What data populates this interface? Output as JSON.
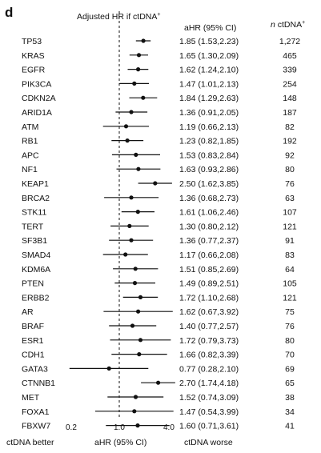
{
  "panel_label": "d",
  "header": {
    "title_main": "Adjusted HR if ctDNA",
    "title_sup": "+",
    "ahr_col": "aHR (95% CI)",
    "n_col_prefix": "n",
    "n_col_main": " ctDNA",
    "n_col_sup": "+"
  },
  "axis": {
    "ticks": [
      "0.2",
      "1.0",
      "4.0"
    ],
    "left_label": "ctDNA better",
    "center_label": "aHR (95% CI)",
    "right_label": "ctDNA worse"
  },
  "chart_data": {
    "type": "forest",
    "x_scale": "log",
    "xlim": [
      0.2,
      4.0
    ],
    "reference_line": 1.0,
    "rows": [
      {
        "gene": "TP53",
        "hr": 1.85,
        "lo": 1.53,
        "hi": 2.23,
        "ci_text": "1.85 (1.53,2.23)",
        "n": "1,272"
      },
      {
        "gene": "KRAS",
        "hr": 1.65,
        "lo": 1.3,
        "hi": 2.09,
        "ci_text": "1.65 (1.30,2.09)",
        "n": "465"
      },
      {
        "gene": "EGFR",
        "hr": 1.62,
        "lo": 1.24,
        "hi": 2.1,
        "ci_text": "1.62 (1.24,2.10)",
        "n": "339"
      },
      {
        "gene": "PIK3CA",
        "hr": 1.47,
        "lo": 1.01,
        "hi": 2.13,
        "ci_text": "1.47 (1.01,2.13)",
        "n": "254"
      },
      {
        "gene": "CDKN2A",
        "hr": 1.84,
        "lo": 1.29,
        "hi": 2.63,
        "ci_text": "1.84 (1.29,2.63)",
        "n": "148"
      },
      {
        "gene": "ARID1A",
        "hr": 1.36,
        "lo": 0.91,
        "hi": 2.05,
        "ci_text": "1.36 (0.91,2.05)",
        "n": "187"
      },
      {
        "gene": "ATM",
        "hr": 1.19,
        "lo": 0.66,
        "hi": 2.13,
        "ci_text": "1.19 (0.66,2.13)",
        "n": "82"
      },
      {
        "gene": "RB1",
        "hr": 1.23,
        "lo": 0.82,
        "hi": 1.85,
        "ci_text": "1.23 (0.82,1.85)",
        "n": "192"
      },
      {
        "gene": "APC",
        "hr": 1.53,
        "lo": 0.83,
        "hi": 2.84,
        "ci_text": "1.53 (0.83,2.84)",
        "n": "92"
      },
      {
        "gene": "NF1",
        "hr": 1.63,
        "lo": 0.93,
        "hi": 2.86,
        "ci_text": "1.63 (0.93,2.86)",
        "n": "80"
      },
      {
        "gene": "KEAP1",
        "hr": 2.5,
        "lo": 1.62,
        "hi": 3.85,
        "ci_text": "2.50 (1.62,3.85)",
        "n": "76"
      },
      {
        "gene": "BRCA2",
        "hr": 1.36,
        "lo": 0.68,
        "hi": 2.73,
        "ci_text": "1.36 (0.68,2.73)",
        "n": "63"
      },
      {
        "gene": "STK11",
        "hr": 1.61,
        "lo": 1.06,
        "hi": 2.46,
        "ci_text": "1.61 (1.06,2.46)",
        "n": "107"
      },
      {
        "gene": "TERT",
        "hr": 1.3,
        "lo": 0.8,
        "hi": 2.12,
        "ci_text": "1.30 (0.80,2.12)",
        "n": "121"
      },
      {
        "gene": "SF3B1",
        "hr": 1.36,
        "lo": 0.77,
        "hi": 2.37,
        "ci_text": "1.36 (0.77,2.37)",
        "n": "91"
      },
      {
        "gene": "SMAD4",
        "hr": 1.17,
        "lo": 0.66,
        "hi": 2.08,
        "ci_text": "1.17 (0.66,2.08)",
        "n": "83"
      },
      {
        "gene": "KDM6A",
        "hr": 1.51,
        "lo": 0.85,
        "hi": 2.69,
        "ci_text": "1.51 (0.85,2.69)",
        "n": "64"
      },
      {
        "gene": "PTEN",
        "hr": 1.49,
        "lo": 0.89,
        "hi": 2.51,
        "ci_text": "1.49 (0.89,2.51)",
        "n": "105"
      },
      {
        "gene": "ERBB2",
        "hr": 1.72,
        "lo": 1.1,
        "hi": 2.68,
        "ci_text": "1.72 (1.10,2.68)",
        "n": "121"
      },
      {
        "gene": "AR",
        "hr": 1.62,
        "lo": 0.67,
        "hi": 3.92,
        "ci_text": "1.62 (0.67,3.92)",
        "n": "75"
      },
      {
        "gene": "BRAF",
        "hr": 1.4,
        "lo": 0.77,
        "hi": 2.57,
        "ci_text": "1.40 (0.77,2.57)",
        "n": "76"
      },
      {
        "gene": "ESR1",
        "hr": 1.72,
        "lo": 0.79,
        "hi": 3.73,
        "ci_text": "1.72 (0.79,3.73)",
        "n": "80"
      },
      {
        "gene": "CDH1",
        "hr": 1.66,
        "lo": 0.82,
        "hi": 3.39,
        "ci_text": "1.66 (0.82,3.39)",
        "n": "70"
      },
      {
        "gene": "GATA3",
        "hr": 0.77,
        "lo": 0.28,
        "hi": 2.1,
        "ci_text": "0.77 (0.28,2.10)",
        "n": "69"
      },
      {
        "gene": "CTNNB1",
        "hr": 2.7,
        "lo": 1.74,
        "hi": 4.18,
        "ci_text": "2.70 (1.74,4.18)",
        "n": "65"
      },
      {
        "gene": "MET",
        "hr": 1.52,
        "lo": 0.74,
        "hi": 3.09,
        "ci_text": "1.52 (0.74,3.09)",
        "n": "38"
      },
      {
        "gene": "FOXA1",
        "hr": 1.47,
        "lo": 0.54,
        "hi": 3.99,
        "ci_text": "1.47 (0.54,3.99)",
        "n": "34"
      },
      {
        "gene": "FBXW7",
        "hr": 1.6,
        "lo": 0.71,
        "hi": 3.61,
        "ci_text": "1.60 (0.71,3.61)",
        "n": "41"
      }
    ]
  }
}
